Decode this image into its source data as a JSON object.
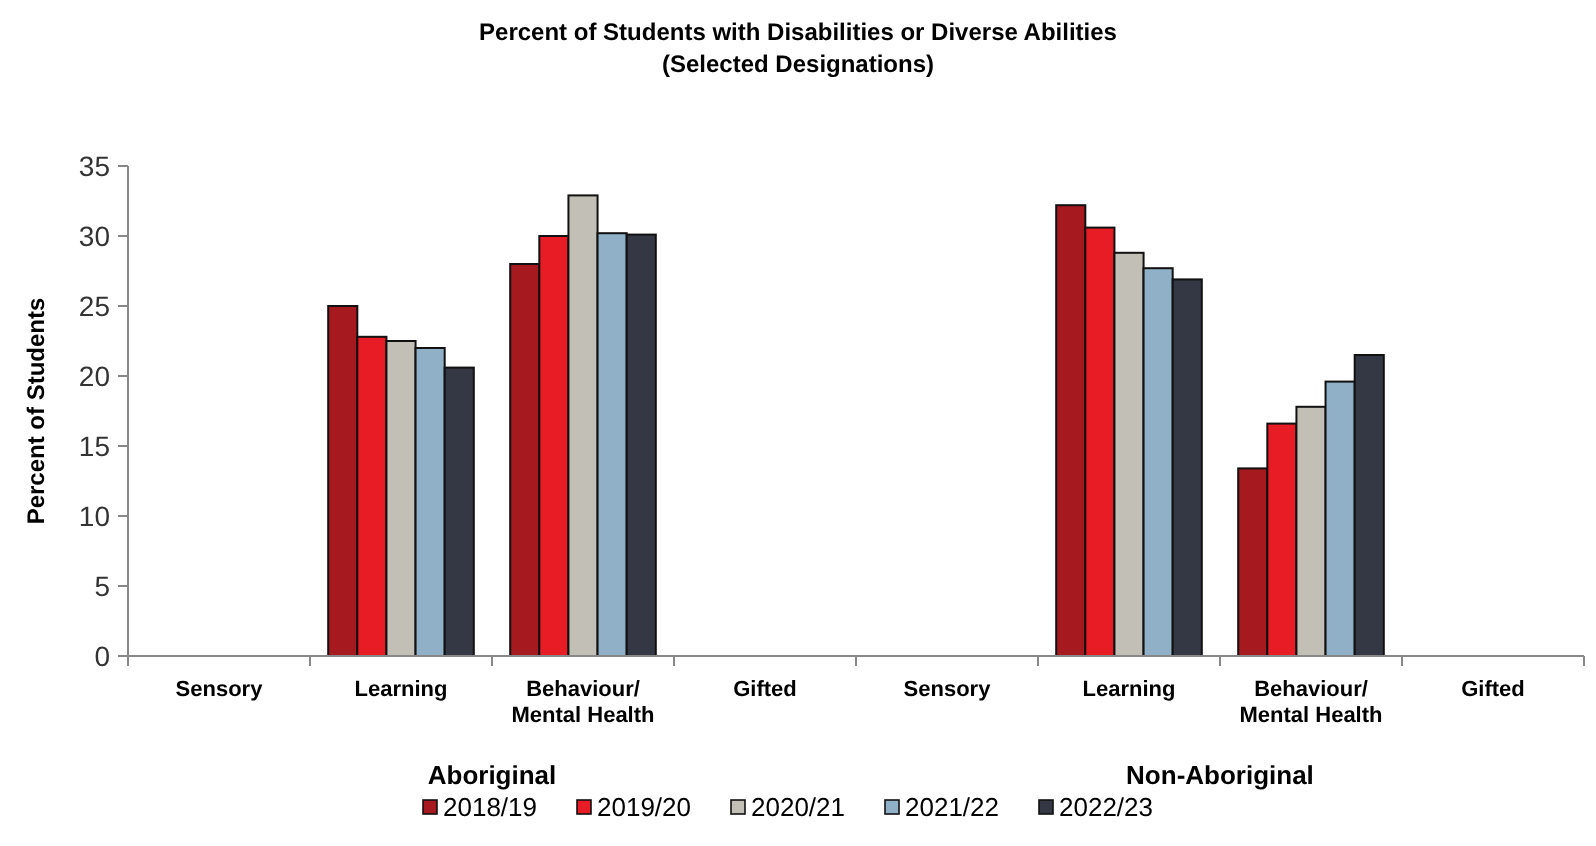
{
  "chart_data": {
    "type": "bar",
    "title": "Percent of Students with Disabilities or Diverse Abilities\n(Selected Designations)",
    "ylabel": "Percent of Students",
    "categories": [
      "Sensory",
      "Learning",
      "Behaviour/Mental Health",
      "Gifted",
      "Sensory",
      "Learning",
      "Behaviour/Mental Health",
      "Gifted"
    ],
    "series": [
      {
        "name": "2018/19",
        "color": "#a6191e",
        "values": [
          null,
          25.0,
          28.0,
          null,
          null,
          32.2,
          13.4,
          null
        ]
      },
      {
        "name": "2019/20",
        "color": "#e81c24",
        "values": [
          null,
          22.8,
          30.0,
          null,
          null,
          30.6,
          16.6,
          null
        ]
      },
      {
        "name": "2020/21",
        "color": "#c2bfb6",
        "values": [
          null,
          22.5,
          32.9,
          null,
          null,
          28.8,
          17.8,
          null
        ]
      },
      {
        "name": "2021/22",
        "color": "#8fb0c7",
        "values": [
          null,
          22.0,
          30.2,
          null,
          null,
          27.7,
          19.6,
          null
        ]
      },
      {
        "name": "2022/23",
        "color": "#343844",
        "values": [
          null,
          20.6,
          30.1,
          null,
          null,
          26.9,
          21.5,
          null
        ]
      }
    ],
    "annotations": [
      "Aboriginal",
      "Non-Aboriginal"
    ],
    "ylim": [
      0,
      35
    ],
    "yticks": [
      0,
      5,
      10,
      15,
      20,
      25,
      30,
      35
    ],
    "grid": false,
    "legend": "bottom"
  }
}
